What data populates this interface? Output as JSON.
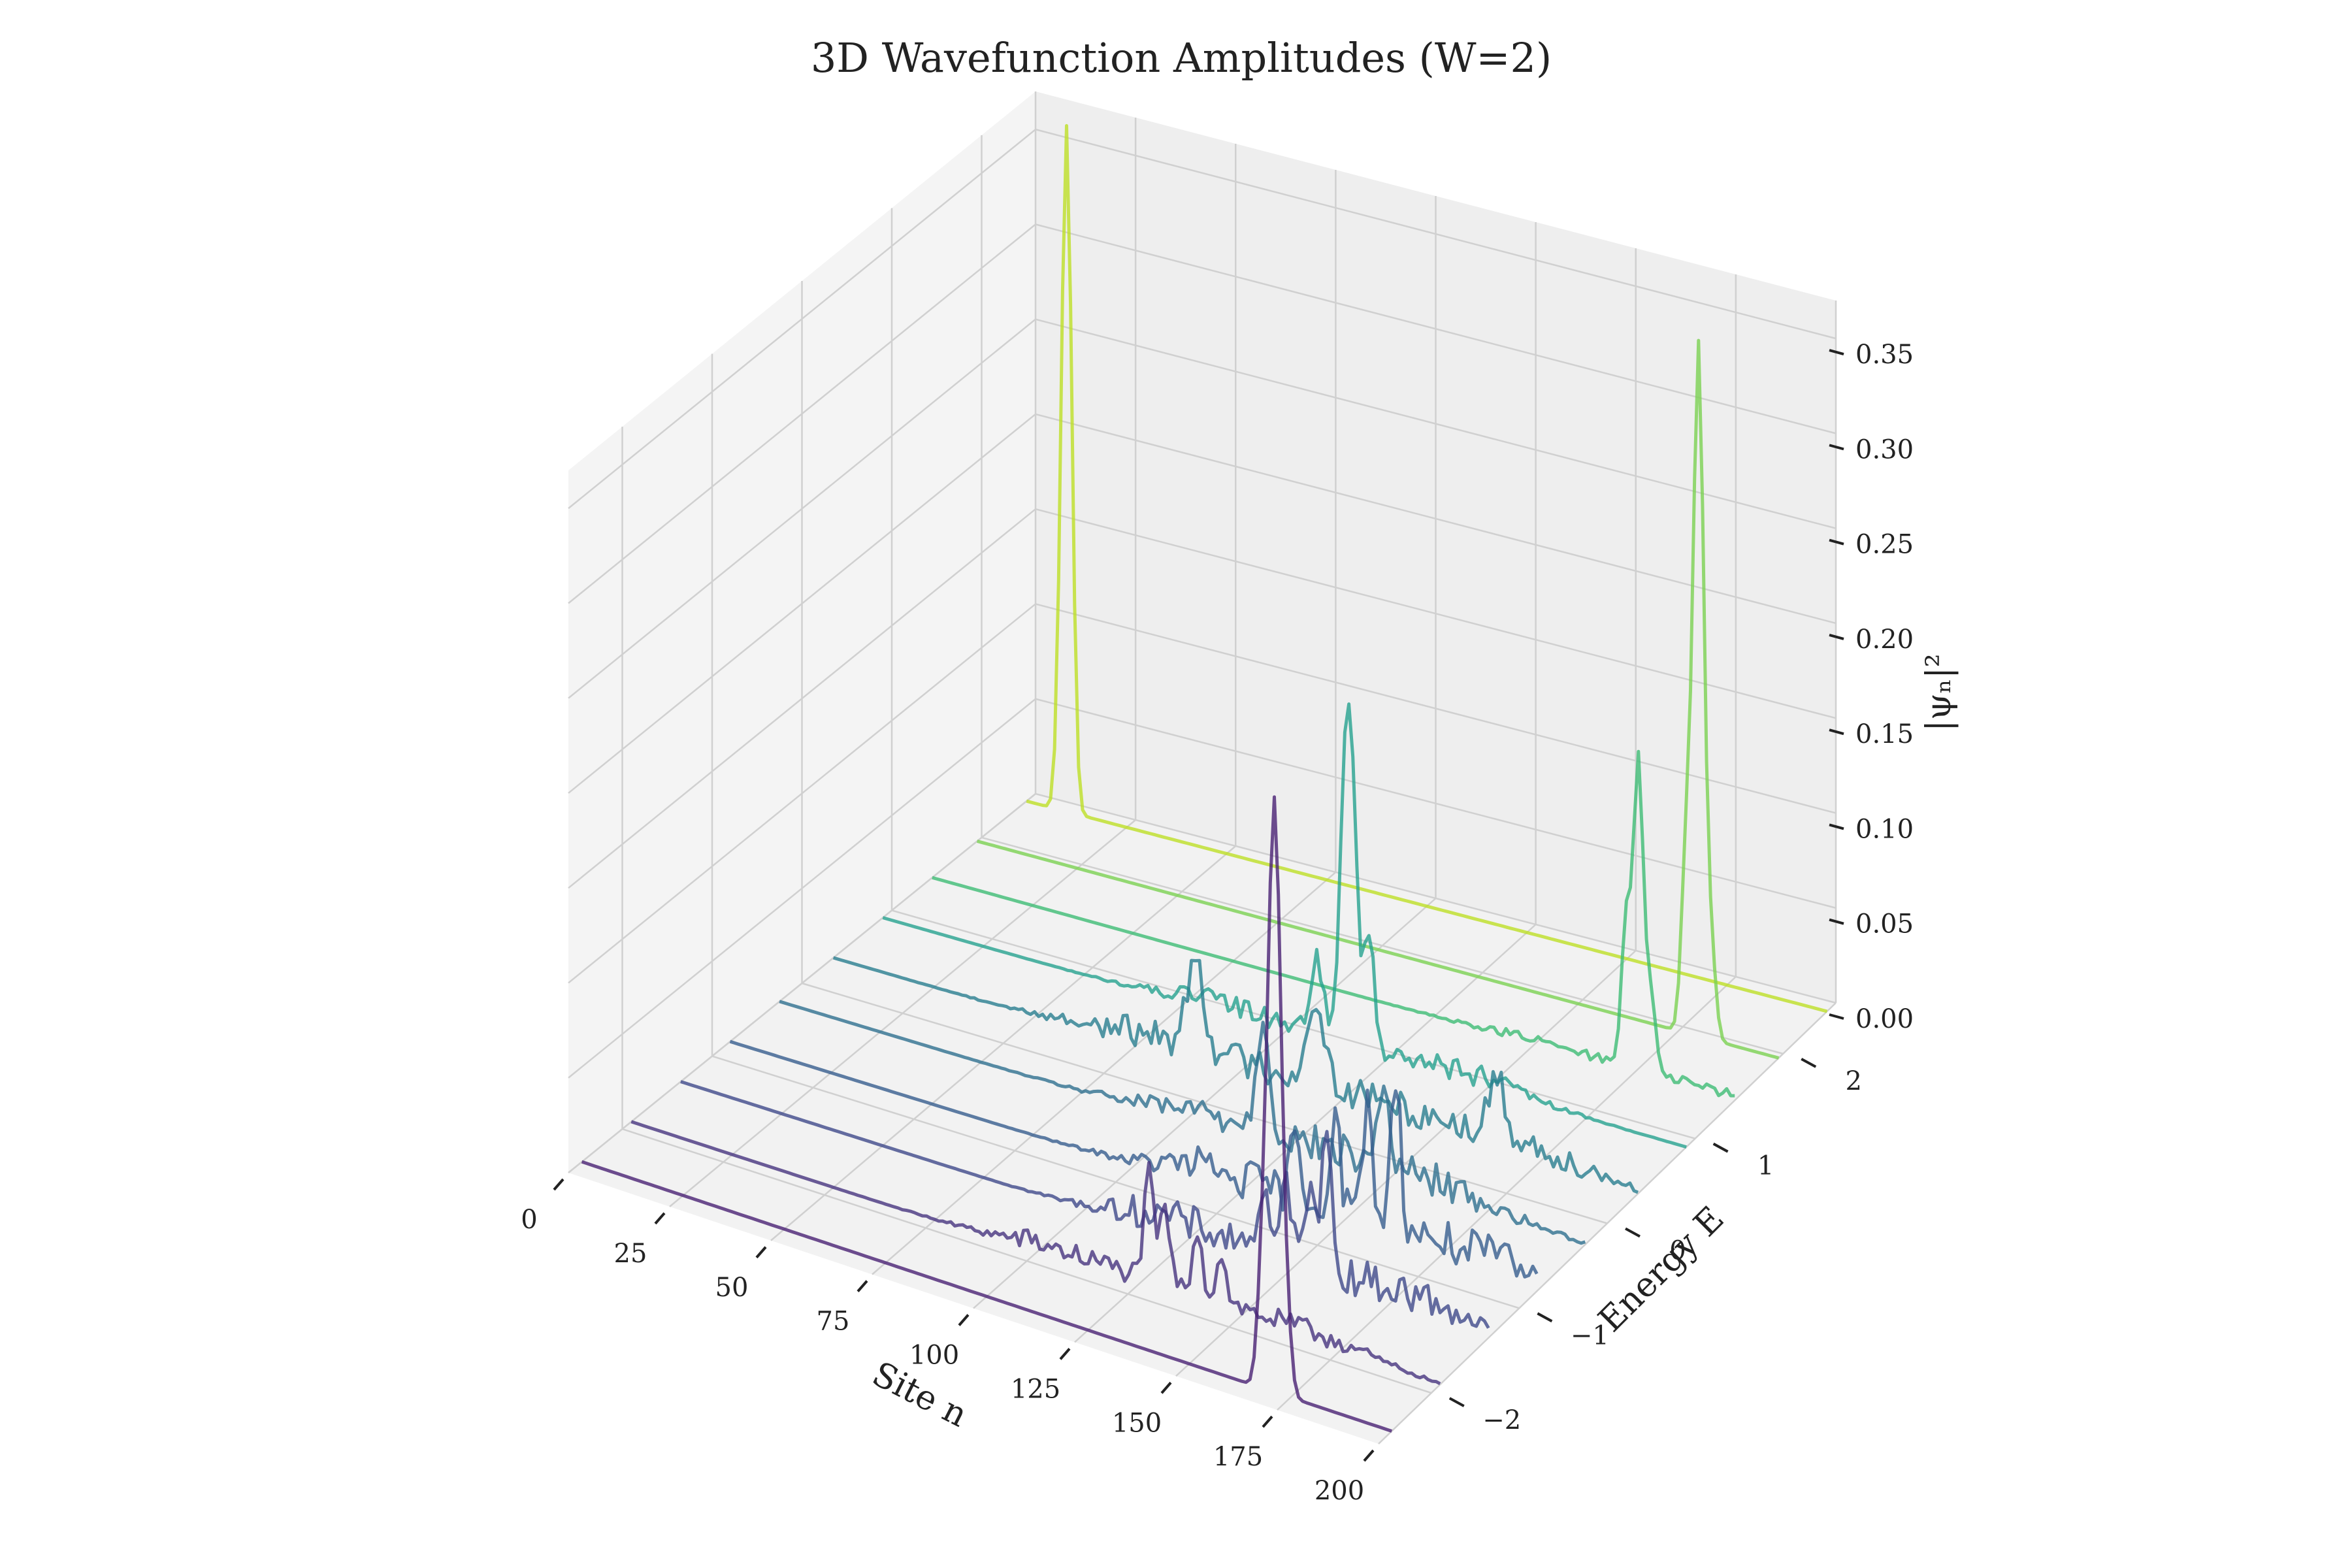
{
  "chart_data": {
    "type": "line",
    "title": "3D Wavefunction Amplitudes (W=2)",
    "xlabel": "Site n",
    "ylabel": "Energy E",
    "zlabel": "|ψₙ|²",
    "xlim": [
      0,
      200
    ],
    "ylim": [
      -2.6,
      2.6
    ],
    "zlim": [
      0,
      0.37
    ],
    "xticks": [
      0,
      25,
      50,
      75,
      100,
      125,
      150,
      175,
      200
    ],
    "yticks": [
      -2,
      -1,
      0,
      1,
      2
    ],
    "zticks": [
      0.0,
      0.05,
      0.1,
      0.15,
      0.2,
      0.25,
      0.3,
      0.35
    ],
    "xtick_labels": [
      "0",
      "25",
      "50",
      "75",
      "100",
      "125",
      "150",
      "175",
      "200"
    ],
    "ytick_labels": [
      "−2",
      "−1",
      "0",
      "1",
      "2"
    ],
    "ztick_labels": [
      "0.00",
      "0.05",
      "0.10",
      "0.15",
      "0.20",
      "0.25",
      "0.30",
      "0.35"
    ],
    "grid": true,
    "colormap": "viridis",
    "series": [
      {
        "energy": -2.45,
        "color": "#482173",
        "peaks": [
          {
            "n": 171,
            "h": 0.31,
            "w": 1.6
          },
          {
            "n": 168,
            "h": 0.05,
            "w": 1.2
          },
          {
            "n": 174,
            "h": 0.03,
            "w": 1.2
          }
        ],
        "noise": 0.0
      },
      {
        "energy": -1.9,
        "color": "#46337e",
        "peaks": [
          {
            "n": 128,
            "h": 0.055,
            "w": 1.2
          },
          {
            "n": 132,
            "h": 0.04,
            "w": 1.2
          },
          {
            "n": 140,
            "h": 0.035,
            "w": 1.2
          },
          {
            "n": 146,
            "h": 0.025,
            "w": 1.2
          }
        ],
        "noise": 0.012
      },
      {
        "energy": -1.35,
        "color": "#3f4889",
        "peaks": [
          {
            "n": 160,
            "h": 0.07,
            "w": 1.2
          },
          {
            "n": 156,
            "h": 0.05,
            "w": 1.2
          },
          {
            "n": 150,
            "h": 0.04,
            "w": 1.2
          },
          {
            "n": 144,
            "h": 0.03,
            "w": 1.2
          }
        ],
        "noise": 0.02
      },
      {
        "energy": -0.8,
        "color": "#365c8d",
        "peaks": [
          {
            "n": 165,
            "h": 0.08,
            "w": 1.2
          },
          {
            "n": 158,
            "h": 0.06,
            "w": 1.2
          },
          {
            "n": 150,
            "h": 0.05,
            "w": 1.2
          },
          {
            "n": 140,
            "h": 0.03,
            "w": 1.2
          }
        ],
        "noise": 0.022
      },
      {
        "energy": -0.25,
        "color": "#2e6f8e",
        "peaks": [
          {
            "n": 120,
            "h": 0.06,
            "w": 1.5
          },
          {
            "n": 150,
            "h": 0.04,
            "w": 1.5
          }
        ],
        "noise": 0.02
      },
      {
        "energy": 0.35,
        "color": "#287d8e",
        "peaks": [
          {
            "n": 90,
            "h": 0.05,
            "w": 2.0
          },
          {
            "n": 120,
            "h": 0.045,
            "w": 2.0
          },
          {
            "n": 165,
            "h": 0.03,
            "w": 2.0
          }
        ],
        "noise": 0.018
      },
      {
        "energy": 0.9,
        "color": "#25a18e",
        "peaks": [
          {
            "n": 115,
            "h": 0.135,
            "w": 1.2
          },
          {
            "n": 117,
            "h": 0.12,
            "w": 1.2
          },
          {
            "n": 121,
            "h": 0.06,
            "w": 1.2
          },
          {
            "n": 108,
            "h": 0.04,
            "w": 1.5
          }
        ],
        "noise": 0.012
      },
      {
        "energy": 1.45,
        "color": "#3dbc74",
        "peaks": [
          {
            "n": 176,
            "h": 0.16,
            "w": 1.2
          },
          {
            "n": 173,
            "h": 0.08,
            "w": 1.2
          },
          {
            "n": 179,
            "h": 0.04,
            "w": 1.2
          }
        ],
        "noise": 0.005
      },
      {
        "energy": 1.95,
        "color": "#7ad151",
        "peaks": [
          {
            "n": 180,
            "h": 0.36,
            "w": 1.3
          },
          {
            "n": 177,
            "h": 0.1,
            "w": 1.2
          },
          {
            "n": 183,
            "h": 0.05,
            "w": 1.2
          }
        ],
        "noise": 0.0
      },
      {
        "energy": 2.5,
        "color": "#bddf26",
        "peaks": [
          {
            "n": 10,
            "h": 0.36,
            "w": 1.3
          },
          {
            "n": 8,
            "h": 0.01,
            "w": 1.0
          }
        ],
        "noise": 0.0
      }
    ]
  }
}
